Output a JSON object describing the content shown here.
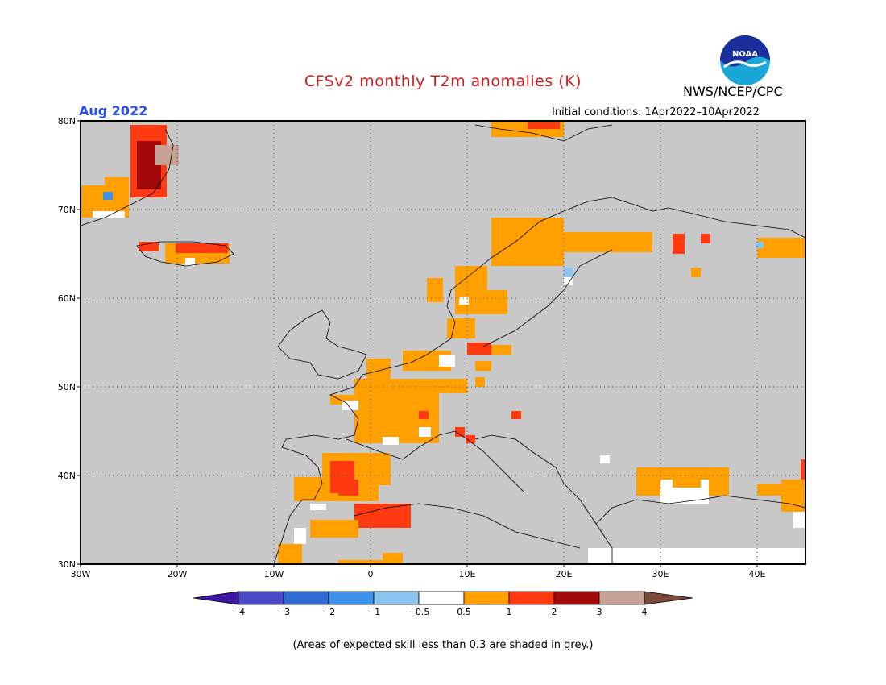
{
  "header": {
    "title": "CFSv2 monthly T2m anomalies (K)",
    "agency": "NWS/NCEP/CPC",
    "logo_text": "NOAA",
    "month": "Aug 2022",
    "initial_conditions": "Initial conditions: 1Apr2022–10Apr2022"
  },
  "map": {
    "region": "Europe",
    "lat_range": [
      30,
      80
    ],
    "lon_range": [
      -30,
      45
    ],
    "lat_labels": [
      "80N",
      "70N",
      "60N",
      "50N",
      "40N",
      "30N"
    ],
    "lon_labels": [
      "30W",
      "20W",
      "10W",
      "0",
      "10E",
      "20E",
      "30E",
      "40E"
    ],
    "colors": {
      "no_skill": "#c8c8c8",
      "neutral": "#ffffff",
      "warm_05_1": "#ff9f00",
      "warm_1_2": "#ff3a10",
      "warm_2_3": "#a20a0a",
      "warm_3_4": "#c7a193",
      "cold_05_1": "#8cc4f0"
    }
  },
  "colorbar": {
    "labels": [
      "−4",
      "−3",
      "−2",
      "−1",
      "−0.5",
      "0.5",
      "1",
      "2",
      "3",
      "4"
    ],
    "colors": [
      "#3f15a6",
      "#4a4ac8",
      "#2d6ad2",
      "#3e92ec",
      "#8cc4f0",
      "#ffffff",
      "#ff9f00",
      "#ff3a10",
      "#a20a0a",
      "#c7a193",
      "#7b4a3a"
    ]
  },
  "footnote": "(Areas of expected skill less than 0.3 are shaded in grey.)"
}
